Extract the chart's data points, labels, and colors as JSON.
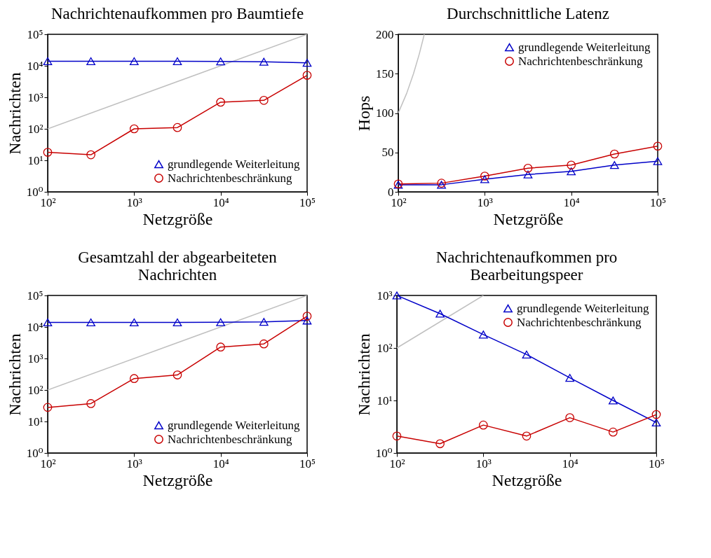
{
  "chart_data": [
    {
      "type": "line",
      "title": "Nachrichtenaufkommen pro Baumtiefe",
      "xlabel": "Netzgröße",
      "ylabel": "Nachrichten",
      "log": "xy",
      "legend": "bottom right",
      "line_style": "solid",
      "x": [
        100,
        316,
        1000,
        3162,
        10000,
        31623,
        100000
      ],
      "xlim": [
        100,
        100000
      ],
      "xticks": [
        {
          "value": 100,
          "label": "10²"
        },
        {
          "value": 1000,
          "label": "10³"
        },
        {
          "value": 10000,
          "label": "10⁴"
        },
        {
          "value": 100000,
          "label": "10⁵"
        }
      ],
      "ylim": [
        1,
        100000
      ],
      "yticks": [
        {
          "value": 1,
          "label": "10⁰"
        },
        {
          "value": 10,
          "label": "10¹"
        },
        {
          "value": 100,
          "label": "10²"
        },
        {
          "value": 1000,
          "label": "10³"
        },
        {
          "value": 10000,
          "label": "10⁴"
        },
        {
          "value": 100000,
          "label": "10⁵"
        }
      ],
      "series": [
        {
          "type": "line",
          "color": "#c0c0c0",
          "marker": "none",
          "x": [
            100,
            100000
          ],
          "values": [
            100,
            100000
          ]
        },
        {
          "name": "grundlegende Weiterleitung",
          "color": "#0000c8",
          "marker": "triangle",
          "values": [
            14000,
            14000,
            14000,
            14000,
            13800,
            13500,
            12500
          ]
        },
        {
          "name": "Nachrichtenbeschränkung",
          "color": "#c80000",
          "marker": "circle",
          "values": [
            18,
            15,
            100,
            110,
            700,
            800,
            5000
          ]
        }
      ]
    },
    {
      "type": "line",
      "title": "Durchschnittliche Latenz",
      "xlabel": "Netzgröße",
      "ylabel": "Hops",
      "log": "x",
      "legend": "top right",
      "line_style": "solid",
      "x": [
        100,
        316,
        1000,
        3162,
        10000,
        31623,
        100000
      ],
      "xlim": [
        100,
        100000
      ],
      "xticks": [
        {
          "value": 100,
          "label": "10²"
        },
        {
          "value": 1000,
          "label": "10³"
        },
        {
          "value": 10000,
          "label": "10⁴"
        },
        {
          "value": 100000,
          "label": "10⁵"
        }
      ],
      "ylim": [
        0,
        200
      ],
      "yticks": [
        0,
        50,
        100,
        150,
        200
      ],
      "series": [
        {
          "type": "line",
          "color": "#c0c0c0",
          "marker": "none",
          "x": [
            100,
            125,
            150,
            175,
            200
          ],
          "values": [
            100,
            125,
            150,
            175,
            200
          ]
        },
        {
          "name": "grundlegende Weiterleitung",
          "color": "#0000c8",
          "marker": "triangle",
          "values": [
            9,
            9,
            16,
            22,
            26,
            34,
            39
          ]
        },
        {
          "name": "Nachrichtenbeschränkung",
          "color": "#c80000",
          "marker": "circle",
          "values": [
            10,
            11,
            20,
            30,
            34,
            48,
            58
          ]
        }
      ]
    },
    {
      "type": "line",
      "title": "Gesamtzahl der abgearbeiteten\nNachrichten",
      "xlabel": "Netzgröße",
      "ylabel": "Nachrichten",
      "log": "xy",
      "legend": "bottom right",
      "line_style": "solid",
      "x": [
        100,
        316,
        1000,
        3162,
        10000,
        31623,
        100000
      ],
      "xlim": [
        100,
        100000
      ],
      "xticks": [
        {
          "value": 100,
          "label": "10²"
        },
        {
          "value": 1000,
          "label": "10³"
        },
        {
          "value": 10000,
          "label": "10⁴"
        },
        {
          "value": 100000,
          "label": "10⁵"
        }
      ],
      "ylim": [
        1,
        100000
      ],
      "yticks": [
        {
          "value": 1,
          "label": "10⁰"
        },
        {
          "value": 10,
          "label": "10¹"
        },
        {
          "value": 100,
          "label": "10²"
        },
        {
          "value": 1000,
          "label": "10³"
        },
        {
          "value": 10000,
          "label": "10⁴"
        },
        {
          "value": 100000,
          "label": "10⁵"
        }
      ],
      "series": [
        {
          "type": "line",
          "color": "#c0c0c0",
          "marker": "none",
          "x": [
            100,
            100000
          ],
          "values": [
            100,
            100000
          ]
        },
        {
          "name": "grundlegende Weiterleitung",
          "color": "#0000c8",
          "marker": "triangle",
          "values": [
            14000,
            14000,
            14000,
            14000,
            14200,
            14500,
            16000
          ]
        },
        {
          "name": "Nachrichtenbeschränkung",
          "color": "#c80000",
          "marker": "circle",
          "values": [
            28,
            37,
            230,
            300,
            2300,
            2900,
            22000
          ]
        }
      ]
    },
    {
      "type": "line",
      "title": "Nachrichtenaufkommen pro\nBearbeitungspeer",
      "xlabel": "Netzgröße",
      "ylabel": "Nachrichten",
      "log": "xy",
      "legend": "top right",
      "line_style": "solid",
      "x": [
        100,
        316,
        1000,
        3162,
        10000,
        31623,
        100000
      ],
      "xlim": [
        100,
        100000
      ],
      "xticks": [
        {
          "value": 100,
          "label": "10²"
        },
        {
          "value": 1000,
          "label": "10³"
        },
        {
          "value": 10000,
          "label": "10⁴"
        },
        {
          "value": 100000,
          "label": "10⁵"
        }
      ],
      "ylim": [
        1,
        1000
      ],
      "yticks": [
        {
          "value": 1,
          "label": "10⁰"
        },
        {
          "value": 10,
          "label": "10¹"
        },
        {
          "value": 100,
          "label": "10²"
        },
        {
          "value": 1000,
          "label": "10³"
        }
      ],
      "series": [
        {
          "type": "line",
          "color": "#c0c0c0",
          "marker": "none",
          "x": [
            100,
            1000
          ],
          "values": [
            100,
            1000
          ]
        },
        {
          "name": "grundlegende Weiterleitung",
          "color": "#0000c8",
          "marker": "triangle",
          "values": [
            1000,
            450,
            180,
            75,
            27,
            10,
            3.8
          ]
        },
        {
          "name": "Nachrichtenbeschränkung",
          "color": "#c80000",
          "marker": "circle",
          "values": [
            2.1,
            1.5,
            3.4,
            2.1,
            4.7,
            2.5,
            5.4
          ]
        }
      ]
    }
  ]
}
